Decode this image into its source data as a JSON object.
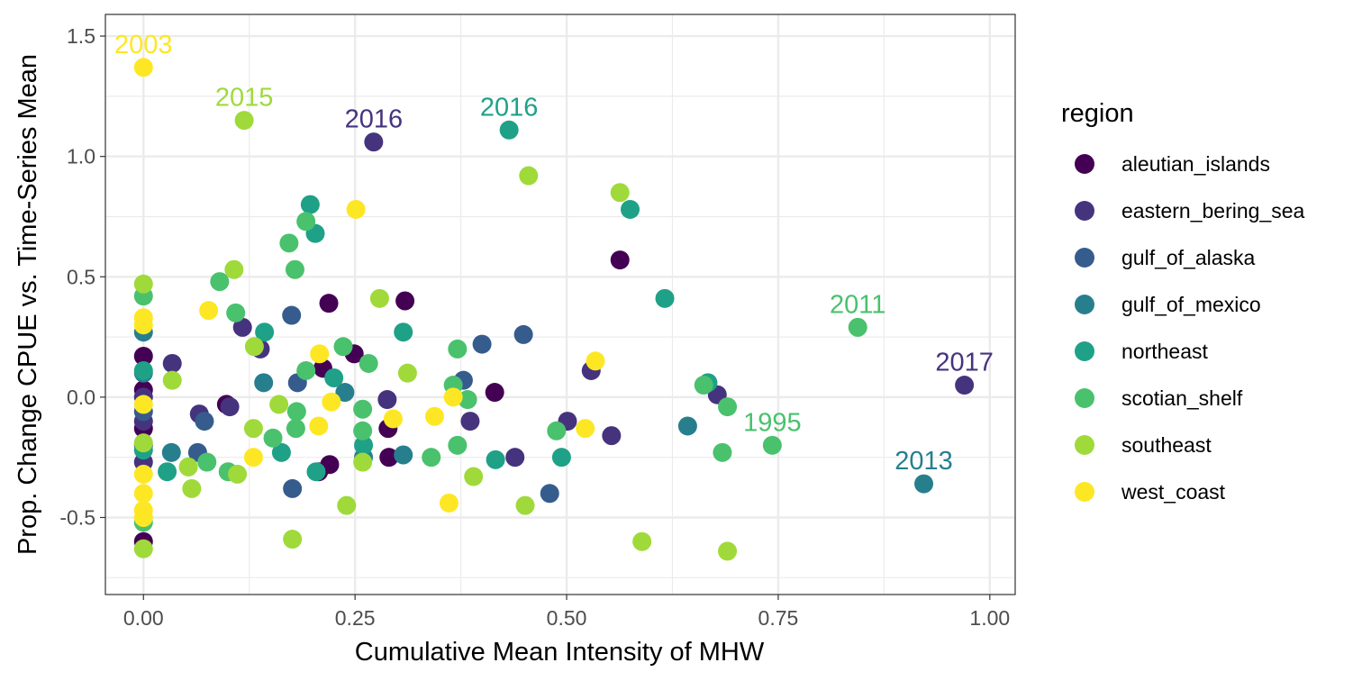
{
  "chart_data": {
    "type": "scatter",
    "xlabel": "Cumulative Mean Intensity of MHW",
    "ylabel": "Prop. Change CPUE vs. Time-Series Mean",
    "xlim": [
      -0.045,
      1.03
    ],
    "ylim": [
      -0.82,
      1.59
    ],
    "xticks": [
      0.0,
      0.25,
      0.5,
      0.75,
      1.0
    ],
    "xtick_labels": [
      "0.00",
      "0.25",
      "0.50",
      "0.75",
      "1.00"
    ],
    "yticks": [
      -0.5,
      0.0,
      0.5,
      1.0,
      1.5
    ],
    "ytick_labels": [
      "-0.5",
      "0.0",
      "0.5",
      "1.0",
      "1.5"
    ],
    "grid": true,
    "legend": {
      "title": "region",
      "position": "right"
    },
    "series": [
      {
        "name": "aleutian_islands",
        "color": "#440154",
        "points": [
          [
            0,
            -0.6
          ],
          [
            0,
            0.17
          ],
          [
            0,
            0.03
          ],
          [
            0,
            -0.13
          ],
          [
            0.098,
            -0.03
          ],
          [
            0.207,
            -0.31
          ],
          [
            0.212,
            0.12
          ],
          [
            0.219,
            0.39
          ],
          [
            0.22,
            -0.28
          ],
          [
            0.249,
            0.18
          ],
          [
            0.289,
            -0.13
          ],
          [
            0.29,
            -0.25
          ],
          [
            0.309,
            0.4
          ],
          [
            0.415,
            0.02
          ],
          [
            0.563,
            0.57
          ]
        ]
      },
      {
        "name": "eastern_bering_sea",
        "color": "#46337E",
        "points": [
          [
            0,
            -0.27
          ],
          [
            0,
            -0.1
          ],
          [
            0,
            0.0
          ],
          [
            0.034,
            0.14
          ],
          [
            0.066,
            -0.07
          ],
          [
            0.102,
            -0.04
          ],
          [
            0.117,
            0.29
          ],
          [
            0.138,
            0.2
          ],
          [
            0.272,
            1.06
          ],
          [
            0.288,
            -0.01
          ],
          [
            0.386,
            -0.1
          ],
          [
            0.439,
            -0.25
          ],
          [
            0.501,
            -0.1
          ],
          [
            0.529,
            0.11
          ],
          [
            0.553,
            -0.16
          ],
          [
            0.678,
            0.01
          ],
          [
            0.97,
            0.05
          ]
        ]
      },
      {
        "name": "gulf_of_alaska",
        "color": "#365C8D",
        "points": [
          [
            0,
            -0.06
          ],
          [
            0,
            -0.2
          ],
          [
            0.064,
            -0.23
          ],
          [
            0.072,
            -0.1
          ],
          [
            0.175,
            0.34
          ],
          [
            0.176,
            -0.38
          ],
          [
            0.182,
            0.06
          ],
          [
            0.378,
            0.07
          ],
          [
            0.4,
            0.22
          ],
          [
            0.449,
            0.26
          ],
          [
            0.48,
            -0.4
          ]
        ]
      },
      {
        "name": "gulf_of_mexico",
        "color": "#277F8E",
        "points": [
          [
            0,
            0.27
          ],
          [
            0,
            0.1
          ],
          [
            0.033,
            -0.23
          ],
          [
            0.142,
            0.06
          ],
          [
            0.238,
            0.02
          ],
          [
            0.26,
            -0.25
          ],
          [
            0.307,
            -0.24
          ],
          [
            0.643,
            -0.12
          ],
          [
            0.922,
            -0.36
          ]
        ]
      },
      {
        "name": "northeast",
        "color": "#1FA187",
        "points": [
          [
            0,
            0.11
          ],
          [
            0,
            -0.22
          ],
          [
            0.028,
            -0.31
          ],
          [
            0.143,
            0.27
          ],
          [
            0.163,
            -0.23
          ],
          [
            0.197,
            0.8
          ],
          [
            0.203,
            0.68
          ],
          [
            0.204,
            -0.31
          ],
          [
            0.225,
            0.08
          ],
          [
            0.26,
            -0.2
          ],
          [
            0.307,
            0.27
          ],
          [
            0.416,
            -0.26
          ],
          [
            0.432,
            1.11
          ],
          [
            0.494,
            -0.25
          ],
          [
            0.575,
            0.78
          ],
          [
            0.616,
            0.41
          ],
          [
            0.667,
            0.06
          ]
        ]
      },
      {
        "name": "scotian_shelf",
        "color": "#4AC16D",
        "points": [
          [
            0,
            0.42
          ],
          [
            0,
            -0.52
          ],
          [
            0.075,
            -0.27
          ],
          [
            0.09,
            0.48
          ],
          [
            0.1,
            -0.31
          ],
          [
            0.109,
            0.35
          ],
          [
            0.153,
            -0.17
          ],
          [
            0.172,
            0.64
          ],
          [
            0.179,
            0.53
          ],
          [
            0.18,
            -0.13
          ],
          [
            0.181,
            -0.06
          ],
          [
            0.192,
            0.11
          ],
          [
            0.192,
            0.73
          ],
          [
            0.236,
            0.21
          ],
          [
            0.259,
            -0.14
          ],
          [
            0.259,
            -0.05
          ],
          [
            0.266,
            0.14
          ],
          [
            0.34,
            -0.25
          ],
          [
            0.366,
            0.05
          ],
          [
            0.371,
            0.2
          ],
          [
            0.371,
            -0.2
          ],
          [
            0.383,
            -0.01
          ],
          [
            0.488,
            -0.14
          ],
          [
            0.662,
            0.05
          ],
          [
            0.69,
            -0.04
          ],
          [
            0.684,
            -0.23
          ],
          [
            0.743,
            -0.2
          ],
          [
            0.844,
            0.29
          ]
        ]
      },
      {
        "name": "southeast",
        "color": "#9FDA3A",
        "points": [
          [
            0,
            -0.63
          ],
          [
            0,
            0.47
          ],
          [
            0,
            -0.19
          ],
          [
            0.034,
            0.07
          ],
          [
            0.053,
            -0.29
          ],
          [
            0.057,
            -0.38
          ],
          [
            0.107,
            0.53
          ],
          [
            0.111,
            -0.32
          ],
          [
            0.119,
            1.15
          ],
          [
            0.13,
            -0.13
          ],
          [
            0.131,
            0.21
          ],
          [
            0.16,
            -0.03
          ],
          [
            0.176,
            -0.59
          ],
          [
            0.24,
            -0.45
          ],
          [
            0.259,
            -0.27
          ],
          [
            0.279,
            0.41
          ],
          [
            0.312,
            0.1
          ],
          [
            0.39,
            -0.33
          ],
          [
            0.451,
            -0.45
          ],
          [
            0.455,
            0.92
          ],
          [
            0.563,
            0.85
          ],
          [
            0.589,
            -0.6
          ],
          [
            0.69,
            -0.64
          ]
        ]
      },
      {
        "name": "west_coast",
        "color": "#FDE725",
        "points": [
          [
            0,
            1.37
          ],
          [
            0,
            0.33
          ],
          [
            0,
            0.3
          ],
          [
            0,
            -0.03
          ],
          [
            0,
            -0.32
          ],
          [
            0,
            -0.4
          ],
          [
            0,
            -0.47
          ],
          [
            0,
            -0.5
          ],
          [
            0.077,
            0.36
          ],
          [
            0.13,
            -0.25
          ],
          [
            0.208,
            0.18
          ],
          [
            0.207,
            -0.12
          ],
          [
            0.222,
            -0.02
          ],
          [
            0.251,
            0.78
          ],
          [
            0.295,
            -0.09
          ],
          [
            0.344,
            -0.08
          ],
          [
            0.366,
            0.0
          ],
          [
            0.361,
            -0.44
          ],
          [
            0.522,
            -0.13
          ],
          [
            0.534,
            0.15
          ]
        ]
      }
    ],
    "annotations": [
      {
        "text": "2003",
        "x": 0.0,
        "y": 1.37,
        "series": "west_coast"
      },
      {
        "text": "2015",
        "x": 0.119,
        "y": 1.15,
        "series": "southeast"
      },
      {
        "text": "2016",
        "x": 0.272,
        "y": 1.06,
        "series": "eastern_bering_sea"
      },
      {
        "text": "2016",
        "x": 0.432,
        "y": 1.11,
        "series": "northeast"
      },
      {
        "text": "2011",
        "x": 0.844,
        "y": 0.29,
        "series": "scotian_shelf"
      },
      {
        "text": "2017",
        "x": 0.97,
        "y": 0.05,
        "series": "eastern_bering_sea"
      },
      {
        "text": "1995",
        "x": 0.743,
        "y": -0.2,
        "series": "scotian_shelf"
      },
      {
        "text": "2013",
        "x": 0.922,
        "y": -0.36,
        "series": "gulf_of_mexico"
      }
    ]
  }
}
